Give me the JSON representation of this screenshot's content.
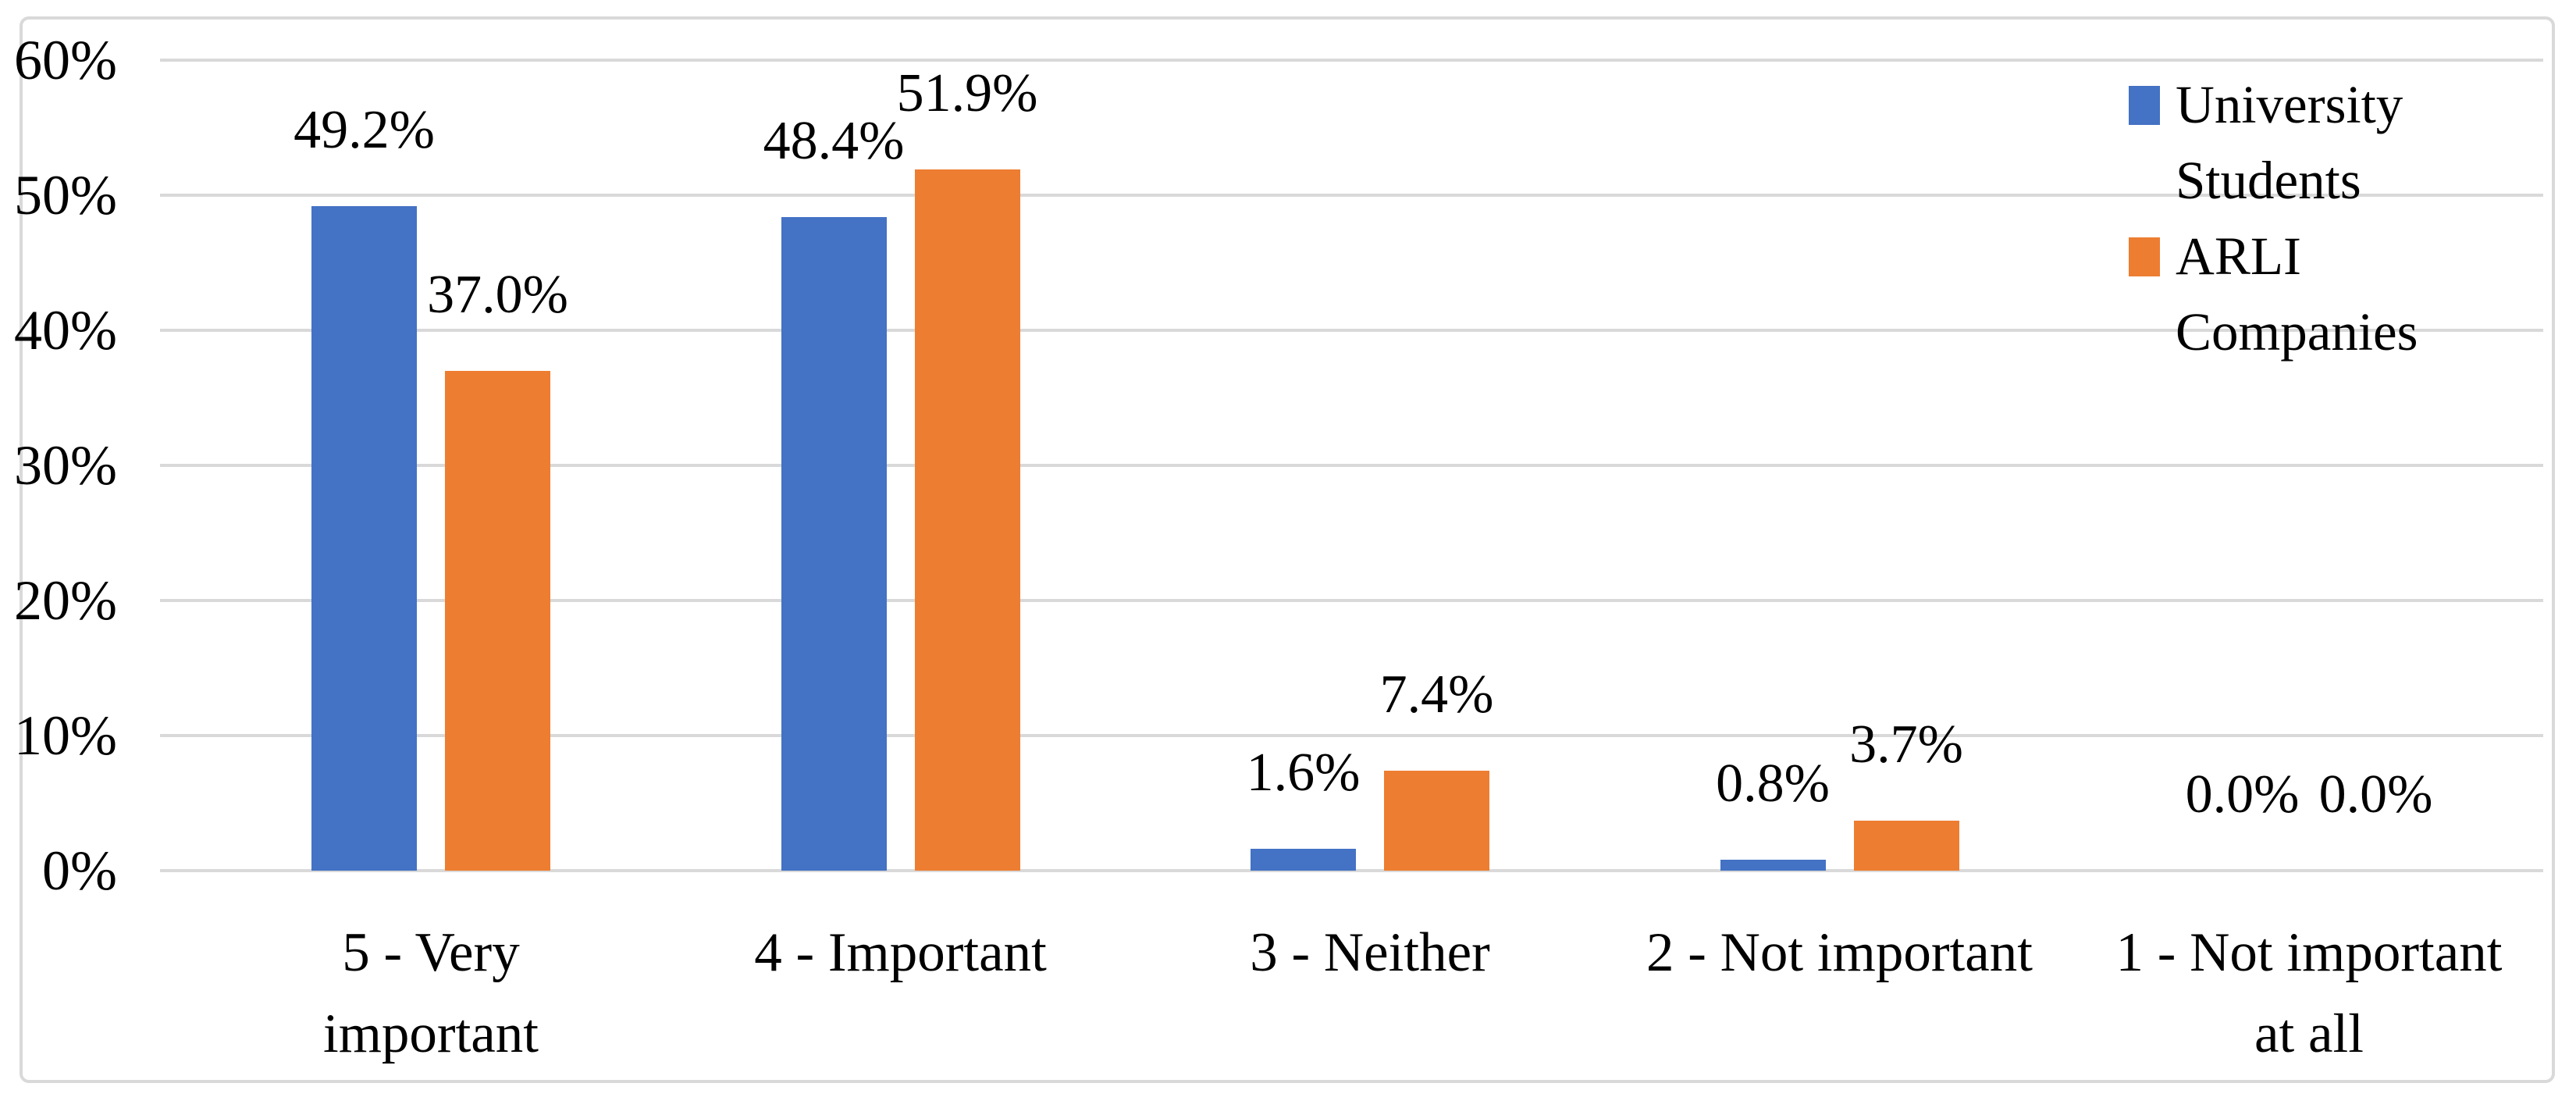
{
  "figure_type": "grouped-bar-chart",
  "chart_data": {
    "type": "bar",
    "title": "",
    "categories": [
      "5 - Very important",
      "4 - Important",
      "3 - Neither",
      "2 - Not important",
      "1 - Not important at all"
    ],
    "category_label_lines": [
      [
        "5 - Very",
        "important"
      ],
      [
        "4 - Important"
      ],
      [
        "3 - Neither"
      ],
      [
        "2 - Not important"
      ],
      [
        "1 - Not important",
        "at all"
      ]
    ],
    "series": [
      {
        "name": "University Students",
        "color": "#4472C4",
        "values": [
          49.2,
          48.4,
          1.6,
          0.8,
          0.0
        ],
        "data_labels": [
          "49.2%",
          "48.4%",
          "1.6%",
          "0.8%",
          "0.0%"
        ]
      },
      {
        "name": "ARLI Companies",
        "color": "#ED7D31",
        "values": [
          37.0,
          51.9,
          7.4,
          3.7,
          0.0
        ],
        "data_labels": [
          "37.0%",
          "51.9%",
          "7.4%",
          "3.7%",
          "0.0%"
        ]
      }
    ],
    "y_axis": {
      "min": 0,
      "max": 60,
      "step": 10,
      "tick_labels": [
        "0%",
        "10%",
        "20%",
        "30%",
        "40%",
        "50%",
        "60%"
      ],
      "format": "percent"
    },
    "legend": {
      "position": "top-right",
      "entries": [
        {
          "label": "University Students",
          "lines": [
            "University",
            "Students"
          ],
          "color": "#4472C4"
        },
        {
          "label": "ARLI Companies",
          "lines": [
            "ARLI",
            "Companies"
          ],
          "color": "#ED7D31"
        }
      ]
    },
    "gridlines": {
      "horizontal": true,
      "vertical": false
    },
    "layout_hints": {
      "legend_overlaps_plot": true,
      "data_label_position": "outside-end"
    }
  },
  "style": {
    "series_blue": "#4472C4",
    "series_orange": "#ED7D31",
    "grid_color": "#D9D9D9",
    "frame_border_color": "#D9D9D9",
    "text_color": "#000000",
    "background": "#FFFFFF"
  }
}
